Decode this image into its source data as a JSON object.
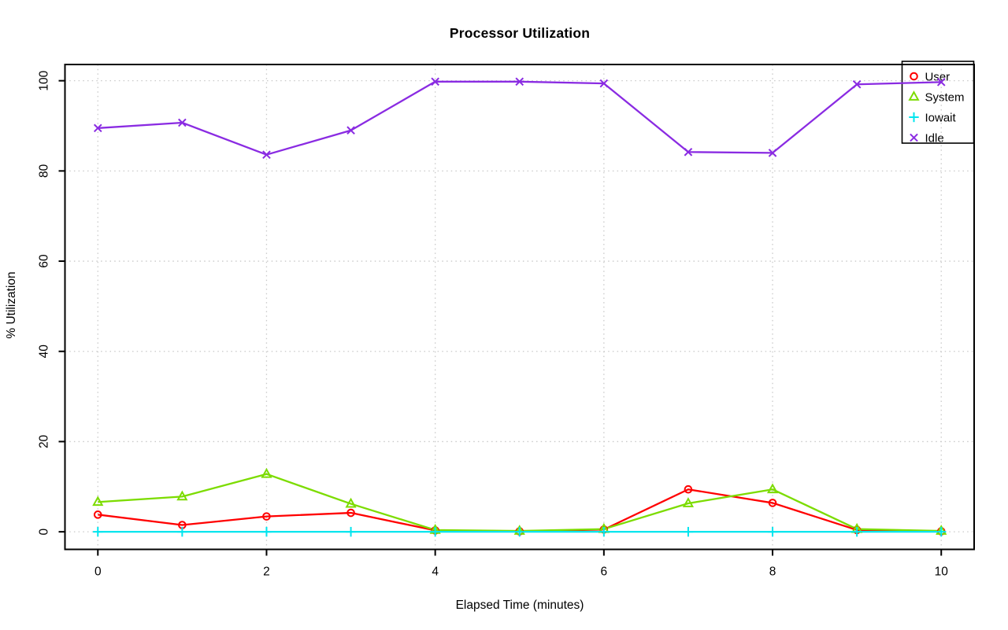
{
  "chart_data": {
    "type": "line",
    "title": "Processor Utilization",
    "xlabel": "Elapsed Time (minutes)",
    "ylabel": "% Utilization",
    "x": [
      0,
      1,
      2,
      3,
      4,
      5,
      6,
      7,
      8,
      9,
      10
    ],
    "xlim": [
      -0.39,
      10.39
    ],
    "ylim": [
      -3.9,
      103.6
    ],
    "xticks": [
      "0",
      "2",
      "4",
      "6",
      "8",
      "10"
    ],
    "xtick_values": [
      0,
      2,
      4,
      6,
      8,
      10
    ],
    "yticks": [
      "0",
      "20",
      "40",
      "60",
      "80",
      "100"
    ],
    "ytick_values": [
      0,
      20,
      40,
      60,
      80,
      100
    ],
    "grid": true,
    "legend_position": "top-right",
    "series": [
      {
        "name": "User",
        "color": "#FF0000",
        "marker": "circle",
        "values": [
          3.8,
          1.5,
          3.4,
          4.2,
          0.3,
          0.1,
          0.5,
          9.4,
          6.4,
          0.4,
          0.1
        ]
      },
      {
        "name": "System",
        "color": "#7CDC00",
        "marker": "triangle",
        "values": [
          6.6,
          7.8,
          12.8,
          6.2,
          0.4,
          0.2,
          0.6,
          6.3,
          9.4,
          0.6,
          0.2
        ]
      },
      {
        "name": "Iowait",
        "color": "#00E5EE",
        "marker": "plus",
        "values": [
          0,
          0,
          0,
          0,
          0,
          0,
          0,
          0,
          0,
          0,
          0
        ]
      },
      {
        "name": "Idle",
        "color": "#8A2BE2",
        "marker": "x",
        "values": [
          89.5,
          90.7,
          83.6,
          89.0,
          99.8,
          99.8,
          99.4,
          84.2,
          84.0,
          99.2,
          99.7
        ]
      }
    ]
  },
  "colors": {
    "background": "#FFFFFF",
    "grid": "#C9C9C9",
    "axis": "#000000",
    "legend_border": "#000000",
    "legend_background": "#FFFFFF"
  }
}
